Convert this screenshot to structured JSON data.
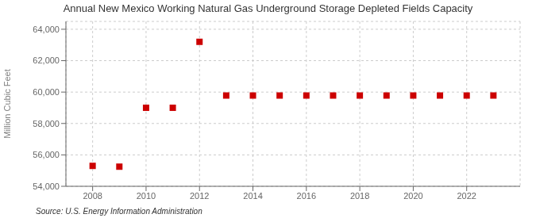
{
  "chart_data": {
    "type": "scatter",
    "title": "Annual New Mexico Working Natural Gas Underground Storage Depleted Fields Capacity",
    "y_label": "Million Cubic Feet",
    "annotations": [
      "Source: U.S. Energy Information Administration"
    ],
    "x": [
      2008,
      2009,
      2010,
      2011,
      2012,
      2013,
      2014,
      2015,
      2016,
      2017,
      2018,
      2019,
      2020,
      2021,
      2022,
      2023
    ],
    "values": [
      55300,
      55250,
      59000,
      59000,
      63200,
      59780,
      59780,
      59780,
      59780,
      59780,
      59780,
      59780,
      59780,
      59780,
      59780,
      59780
    ],
    "color": "#cc0000",
    "marker": "square",
    "xlim": [
      2007,
      2024
    ],
    "xticks": [
      2008,
      2010,
      2012,
      2014,
      2016,
      2018,
      2020,
      2022
    ],
    "ylim": [
      54000,
      64500
    ],
    "yticks": [
      {
        "value": 54000,
        "label": "54,000"
      },
      {
        "value": 56000,
        "label": "56,000"
      },
      {
        "value": 58000,
        "label": "58,000"
      },
      {
        "value": 60000,
        "label": "60,000"
      },
      {
        "value": 62000,
        "label": "62,000"
      },
      {
        "value": 64000,
        "label": "64,000"
      }
    ],
    "grid": true
  }
}
